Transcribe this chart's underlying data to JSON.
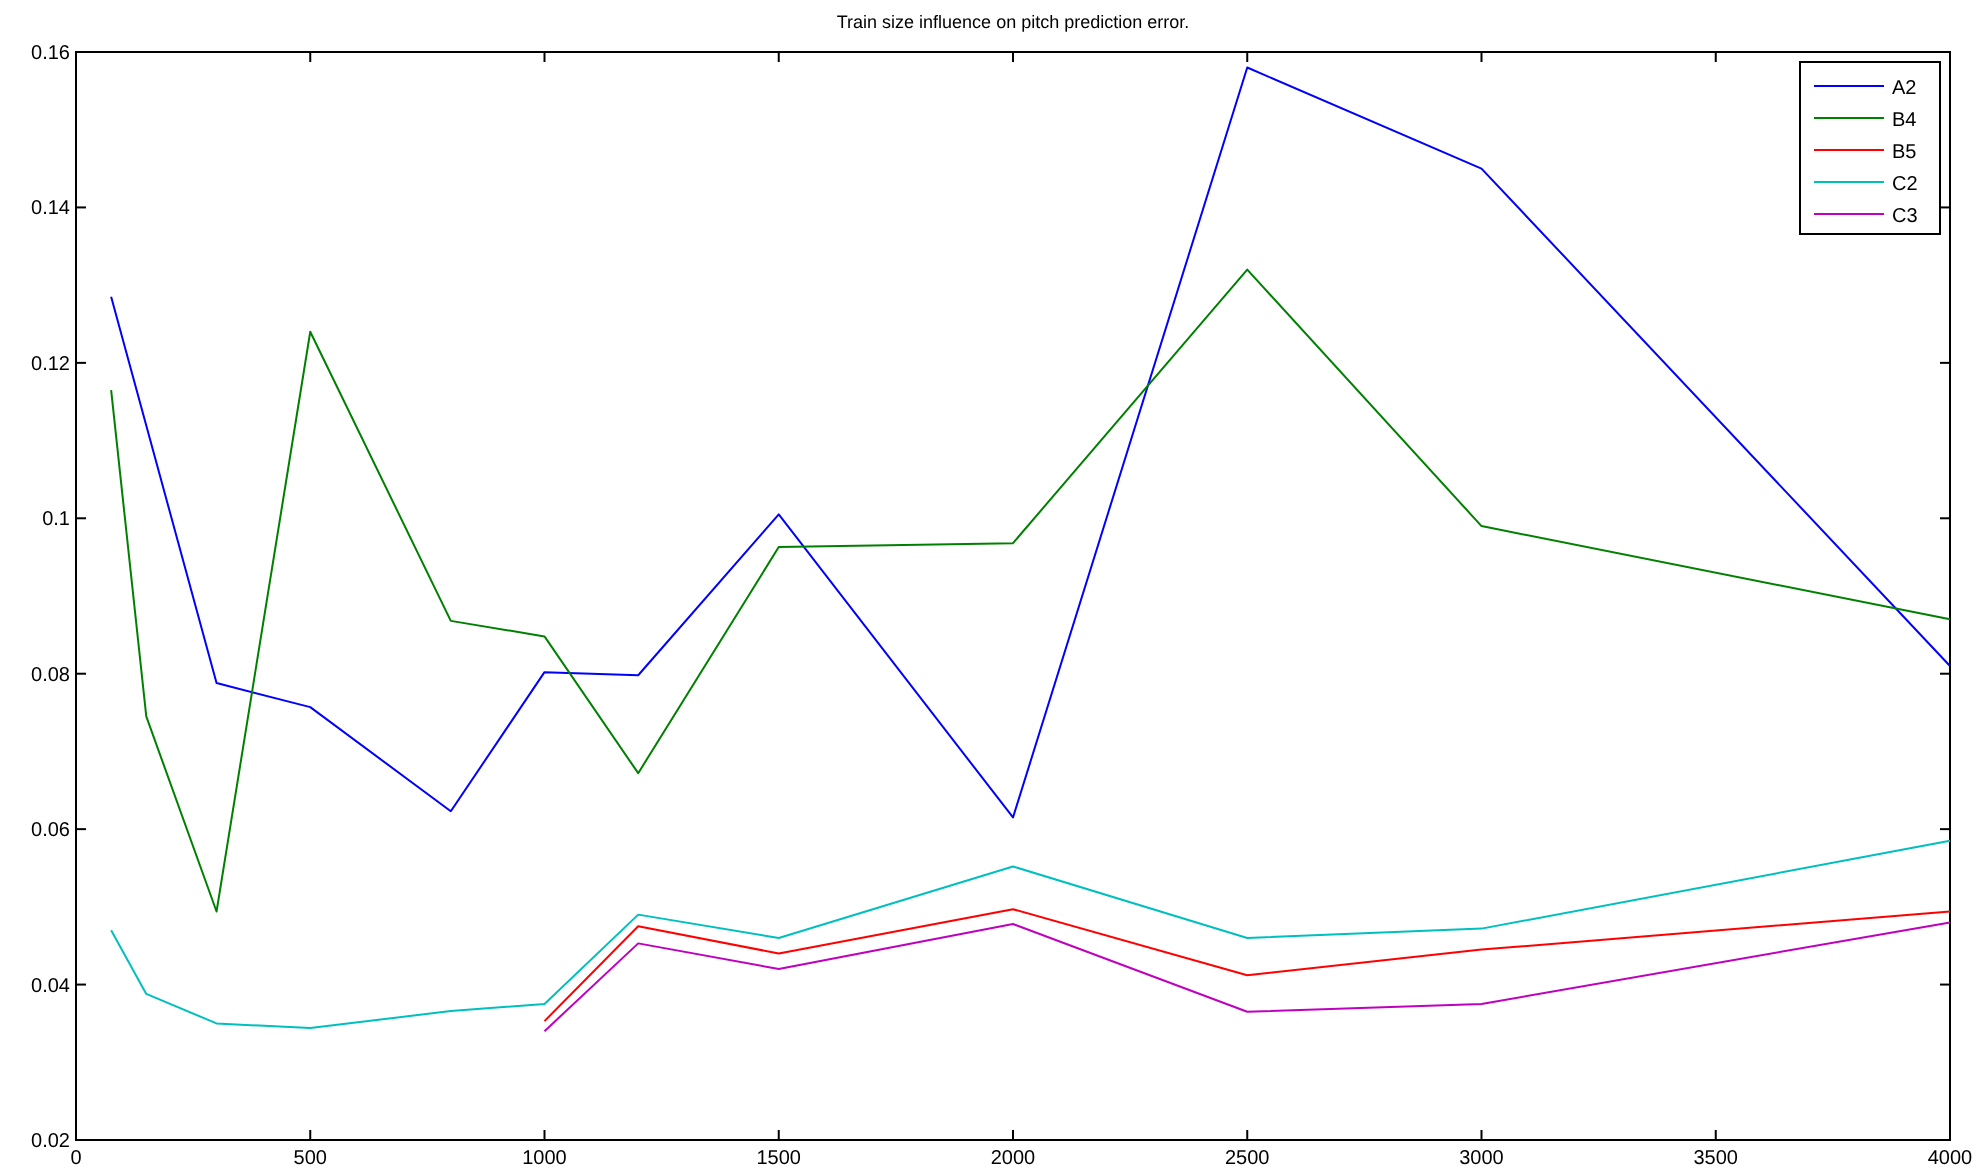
{
  "chart_data": {
    "type": "line",
    "title": "Train size influence on pitch prediction error.",
    "xlim": [
      0,
      4000
    ],
    "xticks": [
      0,
      500,
      1000,
      1500,
      2000,
      2500,
      3000,
      3500,
      4000
    ],
    "ylim": [
      0.02,
      0.16
    ],
    "yticks": [
      0.02,
      0.04,
      0.06,
      0.08,
      0.1,
      0.12,
      0.14,
      0.16
    ],
    "grid": false,
    "legend": "top right",
    "marker": "none",
    "line_style": "solid",
    "series": [
      {
        "name": "A2",
        "color": "#0000ff",
        "x": [
          75,
          300,
          500,
          800,
          1000,
          1200,
          1500,
          2000,
          2500,
          3000,
          4000
        ],
        "values": [
          0.1285,
          0.0788,
          0.0757,
          0.0623,
          0.0802,
          0.0798,
          0.1005,
          0.0615,
          0.158,
          0.145,
          0.081
        ]
      },
      {
        "name": "B4",
        "color": "#008000",
        "x": [
          75,
          150,
          300,
          500,
          800,
          1000,
          1200,
          1500,
          2000,
          2500,
          3000,
          4000
        ],
        "values": [
          0.1165,
          0.0745,
          0.0494,
          0.124,
          0.0868,
          0.0848,
          0.0672,
          0.0963,
          0.0968,
          0.132,
          0.099,
          0.087
        ]
      },
      {
        "name": "B5",
        "color": "#ff0000",
        "x": [
          1000,
          1200,
          1500,
          2000,
          2500,
          3000,
          4000
        ],
        "values": [
          0.0353,
          0.0475,
          0.044,
          0.0497,
          0.0412,
          0.0445,
          0.0494
        ]
      },
      {
        "name": "C2",
        "color": "#00bfbf",
        "x": [
          75,
          150,
          300,
          500,
          800,
          1000,
          1200,
          1500,
          2000,
          2500,
          3000,
          4000
        ],
        "values": [
          0.047,
          0.0388,
          0.035,
          0.0344,
          0.0366,
          0.0375,
          0.049,
          0.046,
          0.0552,
          0.046,
          0.0472,
          0.0585
        ]
      },
      {
        "name": "C3",
        "color": "#bf00bf",
        "x": [
          1000,
          1200,
          1500,
          2000,
          2500,
          3000,
          4000
        ],
        "values": [
          0.034,
          0.0453,
          0.042,
          0.0478,
          0.0365,
          0.0375,
          0.048
        ]
      }
    ]
  }
}
